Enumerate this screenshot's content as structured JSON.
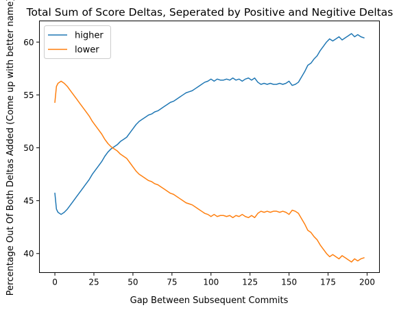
{
  "chart_data": {
    "type": "line",
    "title": "Total Sum of Score Deltas, Seperated by Positive and Negitive Deltas",
    "xlabel": "Gap Between Subsequent Commits",
    "ylabel": "Percentage Out Of Both Deltas Added (Come up with better name)",
    "xlim": [
      -9.9,
      207.9
    ],
    "ylim": [
      38.2,
      62.0
    ],
    "xticks": [
      0,
      25,
      50,
      75,
      100,
      125,
      150,
      175,
      200
    ],
    "yticks": [
      40,
      45,
      50,
      55,
      60
    ],
    "grid": false,
    "legend_position": "top-left",
    "series": [
      {
        "name": "higher",
        "color": "#1f77b4",
        "x": [
          0,
          1,
          2,
          4,
          6,
          8,
          10,
          12,
          14,
          16,
          18,
          20,
          22,
          24,
          26,
          28,
          30,
          32,
          34,
          36,
          38,
          40,
          42,
          44,
          46,
          48,
          50,
          52,
          54,
          56,
          58,
          60,
          62,
          64,
          66,
          68,
          70,
          72,
          74,
          76,
          78,
          80,
          82,
          84,
          86,
          88,
          90,
          92,
          94,
          96,
          98,
          100,
          102,
          104,
          106,
          108,
          110,
          112,
          114,
          116,
          118,
          120,
          122,
          124,
          126,
          128,
          130,
          132,
          134,
          136,
          138,
          140,
          142,
          144,
          146,
          148,
          150,
          152,
          154,
          156,
          158,
          160,
          162,
          164,
          166,
          168,
          170,
          172,
          174,
          176,
          178,
          180,
          182,
          184,
          186,
          188,
          190,
          192,
          194,
          196,
          198
        ],
        "values": [
          45.7,
          44.2,
          43.9,
          43.7,
          43.9,
          44.2,
          44.6,
          45.0,
          45.4,
          45.8,
          46.2,
          46.6,
          47.0,
          47.5,
          47.9,
          48.3,
          48.7,
          49.2,
          49.6,
          49.9,
          50.1,
          50.3,
          50.6,
          50.8,
          51.0,
          51.4,
          51.8,
          52.2,
          52.5,
          52.7,
          52.9,
          53.1,
          53.2,
          53.4,
          53.5,
          53.7,
          53.9,
          54.1,
          54.3,
          54.4,
          54.6,
          54.8,
          55.0,
          55.2,
          55.3,
          55.4,
          55.6,
          55.8,
          56.0,
          56.2,
          56.3,
          56.5,
          56.3,
          56.5,
          56.4,
          56.4,
          56.5,
          56.4,
          56.6,
          56.4,
          56.5,
          56.3,
          56.5,
          56.6,
          56.4,
          56.6,
          56.2,
          56.0,
          56.1,
          56.0,
          56.1,
          56.0,
          56.0,
          56.1,
          56.0,
          56.1,
          56.3,
          55.9,
          56.0,
          56.2,
          56.7,
          57.2,
          57.8,
          58.0,
          58.4,
          58.7,
          59.2,
          59.6,
          60.0,
          60.3,
          60.1,
          60.3,
          60.5,
          60.2,
          60.4,
          60.6,
          60.8,
          60.5,
          60.7,
          60.5,
          60.4
        ]
      },
      {
        "name": "lower",
        "color": "#ff7f0e",
        "x": [
          0,
          1,
          2,
          4,
          6,
          8,
          10,
          12,
          14,
          16,
          18,
          20,
          22,
          24,
          26,
          28,
          30,
          32,
          34,
          36,
          38,
          40,
          42,
          44,
          46,
          48,
          50,
          52,
          54,
          56,
          58,
          60,
          62,
          64,
          66,
          68,
          70,
          72,
          74,
          76,
          78,
          80,
          82,
          84,
          86,
          88,
          90,
          92,
          94,
          96,
          98,
          100,
          102,
          104,
          106,
          108,
          110,
          112,
          114,
          116,
          118,
          120,
          122,
          124,
          126,
          128,
          130,
          132,
          134,
          136,
          138,
          140,
          142,
          144,
          146,
          148,
          150,
          152,
          154,
          156,
          158,
          160,
          162,
          164,
          166,
          168,
          170,
          172,
          174,
          176,
          178,
          180,
          182,
          184,
          186,
          188,
          190,
          192,
          194,
          196,
          198
        ],
        "values": [
          54.3,
          55.8,
          56.1,
          56.3,
          56.1,
          55.8,
          55.4,
          55.0,
          54.6,
          54.2,
          53.8,
          53.4,
          53.0,
          52.5,
          52.1,
          51.7,
          51.3,
          50.8,
          50.4,
          50.1,
          49.9,
          49.7,
          49.4,
          49.2,
          49.0,
          48.6,
          48.2,
          47.8,
          47.5,
          47.3,
          47.1,
          46.9,
          46.8,
          46.6,
          46.5,
          46.3,
          46.1,
          45.9,
          45.7,
          45.6,
          45.4,
          45.2,
          45.0,
          44.8,
          44.7,
          44.6,
          44.4,
          44.2,
          44.0,
          43.8,
          43.7,
          43.5,
          43.7,
          43.5,
          43.6,
          43.6,
          43.5,
          43.6,
          43.4,
          43.6,
          43.5,
          43.7,
          43.5,
          43.4,
          43.6,
          43.4,
          43.8,
          44.0,
          43.9,
          44.0,
          43.9,
          44.0,
          44.0,
          43.9,
          44.0,
          43.9,
          43.7,
          44.1,
          44.0,
          43.8,
          43.3,
          42.8,
          42.2,
          42.0,
          41.6,
          41.3,
          40.8,
          40.4,
          40.0,
          39.7,
          39.9,
          39.7,
          39.5,
          39.8,
          39.6,
          39.4,
          39.2,
          39.5,
          39.3,
          39.5,
          39.6
        ]
      }
    ]
  }
}
